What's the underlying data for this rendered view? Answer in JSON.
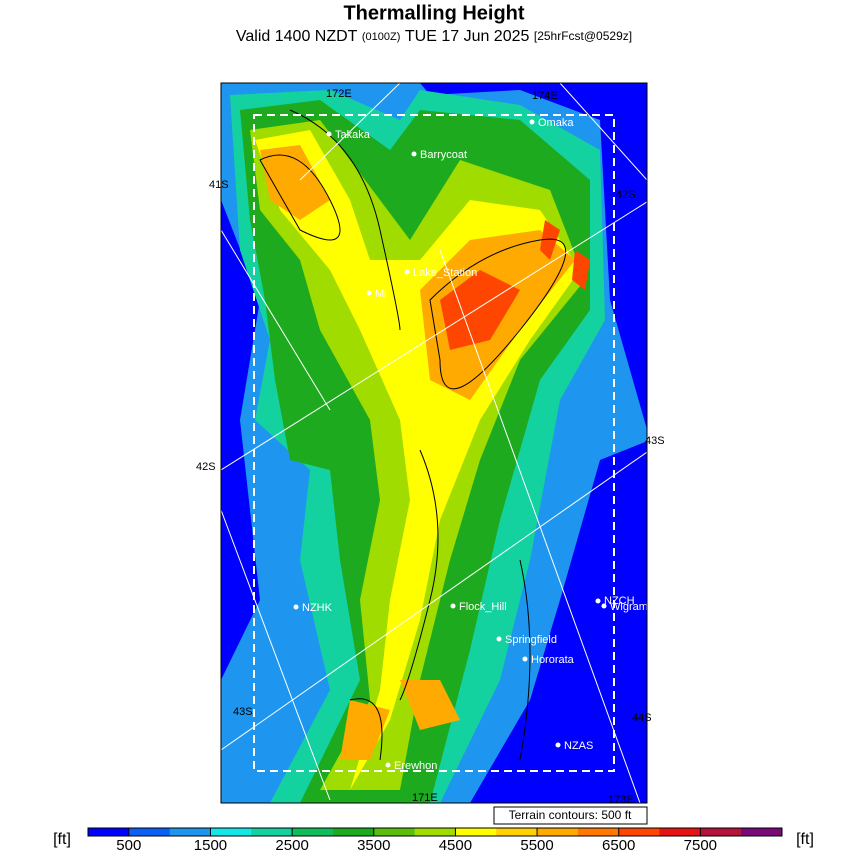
{
  "header": {
    "title": "Thermalling Height",
    "subtitle": {
      "valid": "Valid 1400 NZDT",
      "utc": "(0100Z)",
      "date": "TUE 17 Jun 2025",
      "forecast": "[25hrFcst@0529z]"
    }
  },
  "map": {
    "places": [
      "Takaka",
      "Barrycoat",
      "Omaka",
      "Lake_Station",
      "Mi",
      "NZHK",
      "Flock_Hill",
      "NZCH",
      "Wigram",
      "Springfield",
      "Hororata",
      "NZAS",
      "Erewhon"
    ],
    "lat_labels": [
      "41S",
      "42S",
      "42S",
      "43S",
      "43S",
      "44S"
    ],
    "lon_labels": [
      "172E",
      "174E",
      "171E",
      "173E"
    ],
    "note": "Terrain contours: 500 ft"
  },
  "colorbar": {
    "unit_left": "[ft]",
    "unit_right": "[ft]",
    "lim": [
      0,
      8500
    ],
    "ticks": [
      500,
      1500,
      2500,
      3500,
      4500,
      5500,
      6500,
      7500
    ],
    "colors": [
      "#0000ff",
      "#0a5ff5",
      "#1e96f0",
      "#12e6e6",
      "#14d2a0",
      "#0fbe5a",
      "#1eaa1e",
      "#5abe0a",
      "#a0dc00",
      "#ffff00",
      "#ffd200",
      "#ffaa00",
      "#ff7800",
      "#ff4600",
      "#e61414",
      "#b4143c",
      "#780a78"
    ]
  }
}
